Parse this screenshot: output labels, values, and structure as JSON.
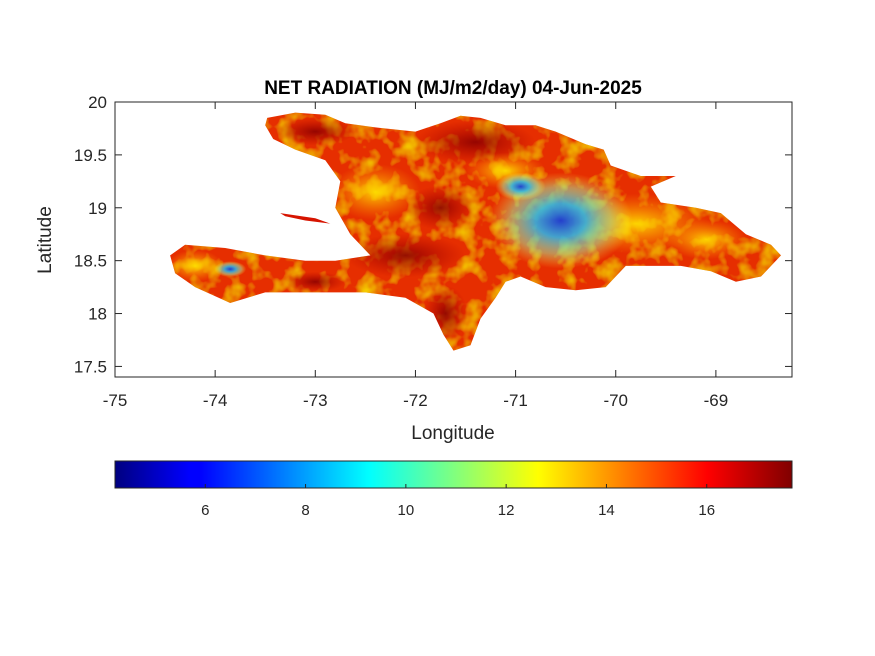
{
  "chart_data": {
    "type": "heatmap",
    "title": "NET RADIATION (MJ/m2/day) 04-Jun-2025",
    "xlabel": "Longitude",
    "ylabel": "Latitude",
    "xlim": [
      -75,
      -68.24
    ],
    "ylim": [
      17.4,
      20
    ],
    "x_ticks": [
      -75,
      -74,
      -73,
      -72,
      -71,
      -70,
      -69
    ],
    "x_tick_labels": [
      "-75",
      "-74",
      "-73",
      "-72",
      "-71",
      "-70",
      "-69"
    ],
    "y_ticks": [
      17.5,
      18,
      18.5,
      19,
      19.5,
      20
    ],
    "y_tick_labels": [
      "17.5",
      "18",
      "18.5",
      "19",
      "19.5",
      "20"
    ],
    "grid": false,
    "colorbar": {
      "colormap": "jet",
      "range": [
        4.2,
        17.7
      ],
      "orientation": "horizontal",
      "placement": "bottom",
      "ticks": [
        6,
        8,
        10,
        12,
        14,
        16
      ],
      "tick_labels": [
        "6",
        "8",
        "10",
        "12",
        "14",
        "16"
      ]
    },
    "regions": [
      {
        "name": "",
        "polygon": [
          [
            -73.48,
            19.85
          ],
          [
            -73.2,
            19.9
          ],
          [
            -72.9,
            19.88
          ],
          [
            -72.7,
            19.8
          ],
          [
            -72.4,
            19.76
          ],
          [
            -72.0,
            19.72
          ],
          [
            -71.75,
            19.8
          ],
          [
            -71.55,
            19.87
          ],
          [
            -71.35,
            19.85
          ],
          [
            -71.1,
            19.78
          ],
          [
            -70.8,
            19.78
          ],
          [
            -70.6,
            19.72
          ],
          [
            -70.3,
            19.6
          ],
          [
            -70.12,
            19.55
          ],
          [
            -70.05,
            19.4
          ],
          [
            -69.75,
            19.3
          ],
          [
            -69.4,
            19.3
          ],
          [
            -69.65,
            19.2
          ],
          [
            -69.55,
            19.05
          ],
          [
            -69.2,
            19.0
          ],
          [
            -68.95,
            18.95
          ],
          [
            -68.7,
            18.75
          ],
          [
            -68.45,
            18.65
          ],
          [
            -68.35,
            18.55
          ],
          [
            -68.55,
            18.35
          ],
          [
            -68.8,
            18.3
          ],
          [
            -69.05,
            18.4
          ],
          [
            -69.35,
            18.45
          ],
          [
            -69.9,
            18.45
          ],
          [
            -70.1,
            18.25
          ],
          [
            -70.4,
            18.22
          ],
          [
            -70.7,
            18.25
          ],
          [
            -70.95,
            18.35
          ],
          [
            -71.1,
            18.3
          ],
          [
            -71.2,
            18.15
          ],
          [
            -71.35,
            17.95
          ],
          [
            -71.45,
            17.7
          ],
          [
            -71.62,
            17.65
          ],
          [
            -71.72,
            17.8
          ],
          [
            -71.82,
            18.0
          ],
          [
            -72.1,
            18.15
          ],
          [
            -72.5,
            18.2
          ],
          [
            -73.0,
            18.2
          ],
          [
            -73.5,
            18.2
          ],
          [
            -73.85,
            18.1
          ],
          [
            -74.2,
            18.25
          ],
          [
            -74.4,
            18.38
          ],
          [
            -74.45,
            18.55
          ],
          [
            -74.3,
            18.65
          ],
          [
            -73.9,
            18.62
          ],
          [
            -73.5,
            18.55
          ],
          [
            -73.1,
            18.5
          ],
          [
            -72.8,
            18.5
          ],
          [
            -72.45,
            18.55
          ],
          [
            -72.65,
            18.75
          ],
          [
            -72.8,
            19.0
          ],
          [
            -72.75,
            19.25
          ],
          [
            -72.9,
            19.45
          ],
          [
            -73.2,
            19.55
          ],
          [
            -73.42,
            19.65
          ],
          [
            -73.5,
            19.78
          ]
        ],
        "value_range": [
          5.5,
          17.7
        ]
      },
      {
        "name": "",
        "polygon": [
          [
            -73.35,
            18.95
          ],
          [
            -73.0,
            18.9
          ],
          [
            -72.85,
            18.85
          ],
          [
            -73.1,
            18.88
          ],
          [
            -73.3,
            18.92
          ]
        ],
        "value_range": [
          16,
          17.5
        ]
      }
    ]
  }
}
